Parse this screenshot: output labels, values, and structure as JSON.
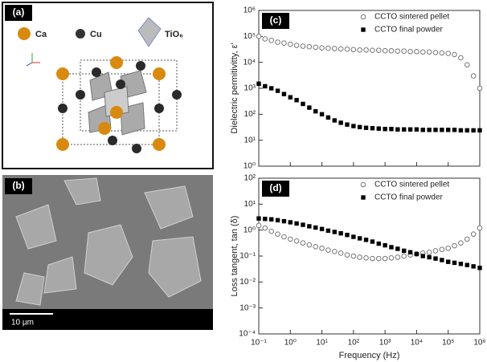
{
  "panels": {
    "a": {
      "label": "(a)",
      "legend": [
        "Ca",
        "Cu",
        "TiO₆"
      ]
    },
    "b": {
      "label": "(b)",
      "scale_bar": "10 µm"
    }
  },
  "chart_data": [
    {
      "type": "scatter",
      "panel_label": "(c)",
      "ylabel": "Dielectric permitivitty, ε′",
      "log_x": true,
      "log_y": true,
      "xlim": [
        0.1,
        1000000
      ],
      "ylim": [
        1,
        1000000
      ],
      "xticklabels": false,
      "xticks": [
        0.1,
        1,
        10,
        100,
        1000,
        10000,
        100000,
        1000000
      ],
      "yticks": [
        {
          "value": 1,
          "label": "10⁰"
        },
        {
          "value": 10,
          "label": "10¹"
        },
        {
          "value": 100,
          "label": "10²"
        },
        {
          "value": 1000,
          "label": "10³"
        },
        {
          "value": 10000,
          "label": "10⁴"
        },
        {
          "value": 100000,
          "label": "10⁵"
        },
        {
          "value": 1000000,
          "label": "10⁶"
        }
      ],
      "legend": "upper right",
      "x": [
        0.1,
        0.158,
        0.251,
        0.398,
        0.631,
        1,
        1.58,
        2.51,
        3.98,
        6.31,
        10,
        15.8,
        25.1,
        39.8,
        63.1,
        100,
        158,
        251,
        398,
        631,
        1000,
        1580,
        2510,
        3980,
        6310,
        10000,
        15800,
        25100,
        39800,
        63100,
        100000,
        158000,
        251000,
        398000,
        631000,
        1000000
      ],
      "series": [
        {
          "name": "CCTO sintered pellet",
          "marker": "circle",
          "color": "#777777",
          "values": [
            100000,
            80000,
            70000,
            60000,
            55000,
            50000,
            45000,
            42000,
            40000,
            38000,
            36000,
            35000,
            34000,
            33000,
            32000,
            31000,
            30000,
            30000,
            29000,
            29000,
            28000,
            28000,
            27000,
            27000,
            26000,
            26000,
            25000,
            25000,
            24000,
            23000,
            22000,
            20000,
            15000,
            8000,
            3000,
            1000
          ]
        },
        {
          "name": "CCTO final powder",
          "marker": "square",
          "color": "#000000",
          "values": [
            1500,
            1200,
            1000,
            800,
            600,
            450,
            350,
            250,
            180,
            130,
            100,
            75,
            58,
            47,
            40,
            35,
            32,
            30,
            29,
            28,
            27,
            27,
            26,
            26,
            26,
            26,
            25,
            25,
            25,
            25,
            25,
            25,
            24,
            24,
            24,
            24
          ]
        }
      ]
    },
    {
      "type": "scatter",
      "panel_label": "(d)",
      "xlabel": "Frequency (Hz)",
      "ylabel": "Loss tangent, tan (δ)",
      "log_x": true,
      "log_y": true,
      "xlim": [
        0.1,
        1000000
      ],
      "ylim": [
        0.0001,
        100
      ],
      "xticks": [
        {
          "value": 0.1,
          "label": "10⁻¹"
        },
        {
          "value": 1,
          "label": "10⁰"
        },
        {
          "value": 10,
          "label": "10¹"
        },
        {
          "value": 100,
          "label": "10²"
        },
        {
          "value": 1000,
          "label": "10³"
        },
        {
          "value": 10000,
          "label": "10⁴"
        },
        {
          "value": 100000,
          "label": "10⁵"
        },
        {
          "value": 1000000,
          "label": "10⁶"
        }
      ],
      "yticks": [
        {
          "value": 0.0001,
          "label": "10⁻⁴"
        },
        {
          "value": 0.001,
          "label": "10⁻³"
        },
        {
          "value": 0.01,
          "label": "10⁻²"
        },
        {
          "value": 0.1,
          "label": "10⁻¹"
        },
        {
          "value": 1,
          "label": "10⁰"
        },
        {
          "value": 10,
          "label": "10¹"
        },
        {
          "value": 100,
          "label": "10²"
        }
      ],
      "legend": "upper right",
      "x": [
        0.1,
        0.158,
        0.251,
        0.398,
        0.631,
        1,
        1.58,
        2.51,
        3.98,
        6.31,
        10,
        15.8,
        25.1,
        39.8,
        63.1,
        100,
        158,
        251,
        398,
        631,
        1000,
        1580,
        2510,
        3980,
        6310,
        10000,
        15800,
        25100,
        39800,
        63100,
        100000,
        158000,
        251000,
        398000,
        631000,
        1000000
      ],
      "series": [
        {
          "name": "CCTO sintered pellet",
          "marker": "circle",
          "color": "#777777",
          "values": [
            1.5,
            1.2,
            0.9,
            0.7,
            0.55,
            0.45,
            0.38,
            0.32,
            0.27,
            0.23,
            0.2,
            0.17,
            0.15,
            0.13,
            0.11,
            0.1,
            0.09,
            0.085,
            0.08,
            0.08,
            0.08,
            0.085,
            0.09,
            0.1,
            0.11,
            0.12,
            0.13,
            0.14,
            0.16,
            0.18,
            0.2,
            0.25,
            0.32,
            0.45,
            0.7,
            1.2
          ]
        },
        {
          "name": "CCTO final powder",
          "marker": "square",
          "color": "#000000",
          "values": [
            2.8,
            2.7,
            2.6,
            2.4,
            2.2,
            2.0,
            1.8,
            1.6,
            1.4,
            1.25,
            1.1,
            0.95,
            0.85,
            0.75,
            0.65,
            0.55,
            0.48,
            0.42,
            0.36,
            0.3,
            0.26,
            0.22,
            0.19,
            0.16,
            0.14,
            0.12,
            0.1,
            0.09,
            0.08,
            0.07,
            0.06,
            0.055,
            0.05,
            0.045,
            0.04,
            0.035
          ]
        }
      ]
    }
  ]
}
